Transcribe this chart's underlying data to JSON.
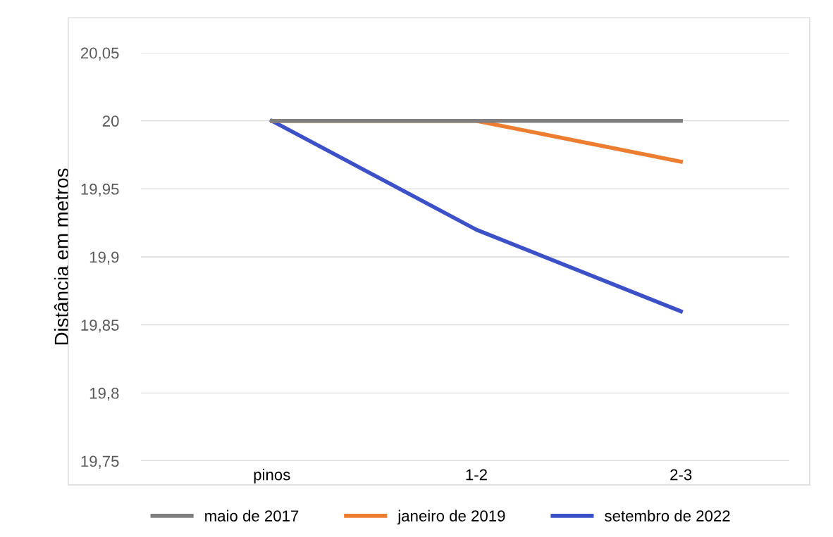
{
  "chart_data": {
    "type": "line",
    "ylabel": "Distância em metros",
    "categories": [
      "pinos",
      "1-2",
      "2-3"
    ],
    "series": [
      {
        "name": "maio de 2017",
        "color": "#7f7f7f",
        "values": [
          20,
          20,
          20
        ]
      },
      {
        "name": "janeiro de 2019",
        "color": "#ed7d31",
        "values": [
          20,
          20,
          19.97
        ]
      },
      {
        "name": "setembro de 2022",
        "color": "#3c50c8",
        "values": [
          20,
          19.92,
          19.86
        ]
      }
    ],
    "ylim": [
      19.75,
      20.05
    ],
    "yticks": [
      {
        "value": 19.75,
        "label": "19,75"
      },
      {
        "value": 19.8,
        "label": "19,8"
      },
      {
        "value": 19.85,
        "label": "19,85"
      },
      {
        "value": 19.9,
        "label": "19,9"
      },
      {
        "value": 19.95,
        "label": "19,95"
      },
      {
        "value": 20,
        "label": "20"
      },
      {
        "value": 20.05,
        "label": "20,05"
      }
    ],
    "grid": "y",
    "legend": "bottom",
    "marker": "none",
    "line_style": "solid"
  }
}
